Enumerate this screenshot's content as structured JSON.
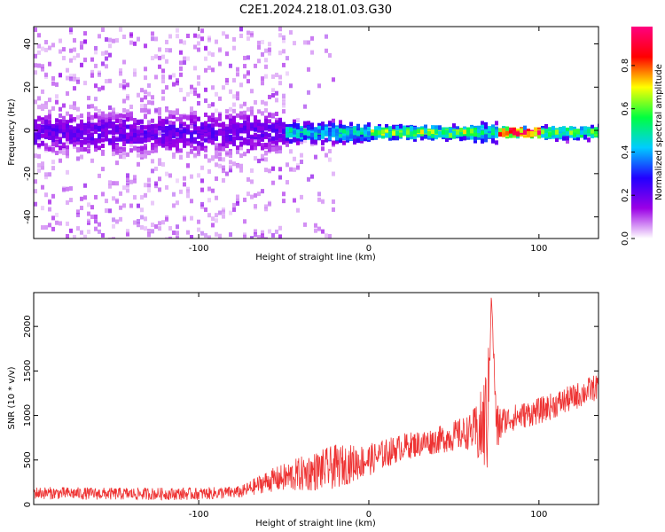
{
  "title": "C2E1.2024.218.01.03.G30",
  "colors": {
    "background": "#ffffff",
    "axis": "#000000",
    "snr_line": "#ee3333",
    "spectrogram_light": "#c9a8ee",
    "spectrogram_core": "#5a00e0"
  },
  "chart_data": [
    {
      "type": "heatmap",
      "title": "C2E1.2024.218.01.03.G30",
      "xlabel": "Height of straight line (km)",
      "ylabel": "Frequency (Hz)",
      "xlim": [
        -197,
        135
      ],
      "ylim": [
        -50,
        48
      ],
      "xticks": [
        -100,
        0,
        100
      ],
      "yticks": [
        -40,
        -20,
        0,
        20,
        40
      ],
      "colorbar": {
        "label": "Normalized spectral amplitude",
        "range": [
          0,
          0.98
        ],
        "ticks": [
          "0.0",
          "0.2",
          "0.4",
          "0.6",
          "0.8"
        ],
        "colormap": "rainbow",
        "stops": [
          "#ffffff",
          "#9b00e6",
          "#2200ff",
          "#00ccff",
          "#00ff40",
          "#ffff00",
          "#ff0000",
          "#ff0080"
        ]
      },
      "band": {
        "center_freq_hz": -1,
        "features": [
          {
            "x_range": [
              -197,
              -50
            ],
            "spread_hz": 12,
            "amplitude": 0.2,
            "description_level": "broad diffuse"
          },
          {
            "x_range": [
              -50,
              0
            ],
            "spread_hz": 5,
            "amplitude": 0.45
          },
          {
            "x_range": [
              0,
              60
            ],
            "spread_hz": 3,
            "amplitude": 0.6
          },
          {
            "x_range": [
              60,
              75
            ],
            "spread_hz": 5,
            "amplitude": 0.5
          },
          {
            "x_range": [
              75,
              100
            ],
            "spread_hz": 2,
            "amplitude": 0.95
          },
          {
            "x_range": [
              100,
              135
            ],
            "spread_hz": 3,
            "amplitude": 0.55
          }
        ]
      }
    },
    {
      "type": "line",
      "xlabel": "Height of straight line (km)",
      "ylabel": "SNR (10 * v/v)",
      "xlim": [
        -197,
        135
      ],
      "ylim": [
        0,
        2380
      ],
      "xticks": [
        -100,
        0,
        100
      ],
      "yticks": [
        0,
        500,
        1000,
        1500,
        2000
      ],
      "series": [
        {
          "trend_x": [
            -197,
            -150,
            -100,
            -75,
            -60,
            -40,
            -20,
            0,
            20,
            40,
            60,
            65,
            70,
            72,
            75,
            80,
            100,
            120,
            135
          ],
          "trend_y": [
            130,
            120,
            120,
            140,
            260,
            340,
            420,
            500,
            650,
            720,
            820,
            800,
            1000,
            2380,
            850,
            950,
            1050,
            1200,
            1330
          ],
          "noise_amplitude": [
            70,
            70,
            70,
            70,
            120,
            200,
            250,
            180,
            150,
            150,
            200,
            400,
            700,
            0,
            300,
            150,
            150,
            150,
            150
          ]
        }
      ]
    }
  ]
}
